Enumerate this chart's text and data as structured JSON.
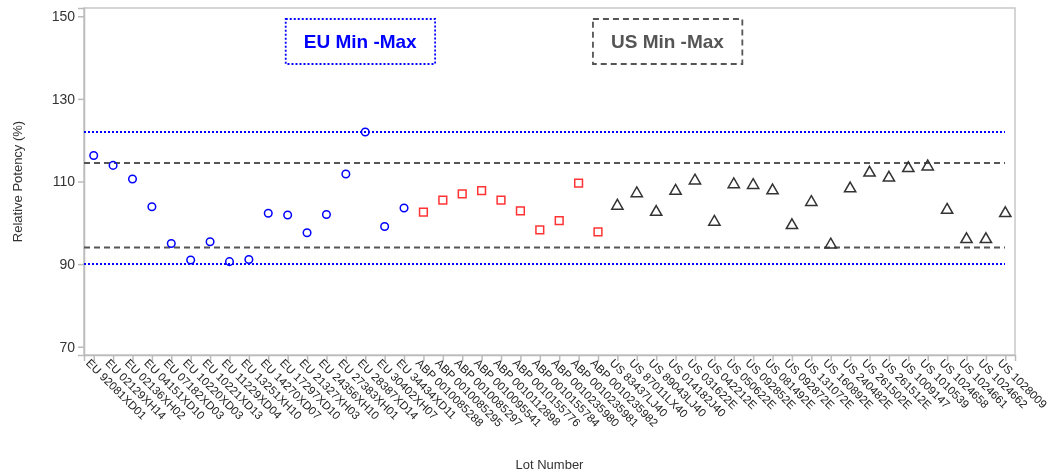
{
  "chart_data": {
    "type": "scatter",
    "xlabel": "Lot Number",
    "ylabel": "Relative Potency (%)",
    "categories": [
      "EU 92081XD01",
      "EU 02129XH14",
      "EU 02136XH02",
      "EU 04151XD10",
      "EU 07182XD03",
      "EU 10220XD03",
      "EU 10221XD13",
      "EU 11229XD04",
      "EU 13251XH10",
      "EU 14270XD07",
      "EU 17297XD10",
      "EU 21327XH03",
      "EU 24356XH10",
      "EU 27383XH01",
      "EU 28387XD14",
      "EU 30402XH07",
      "EU 34434XD11",
      "ABP 0010085288",
      "ABP 0010085295",
      "ABP 0010085297",
      "ABP 0010095541",
      "ABP 0010112898",
      "ABP 0010155776",
      "ABP 0010155784",
      "ABP 0010235980",
      "ABP 0010235981",
      "ABP 0010235982",
      "US 83437LJ40",
      "US 87011LX40",
      "US 89043LJ40",
      "US 014182J40",
      "US 031622E",
      "US 042212E",
      "US 050622E",
      "US 092852E",
      "US 081492E",
      "US 092872E",
      "US 131072E",
      "US 160892E",
      "US 240482E",
      "US 261502E",
      "US 261512E",
      "US 1009147",
      "US 1010539",
      "US 1024658",
      "US 1024661",
      "US 1024662",
      "US 1028009"
    ],
    "series": [
      {
        "color": "#0000ff",
        "marker": "circle",
        "values": [
          116.3,
          113.9,
          110.6,
          103.9,
          95.0,
          91.0,
          95.4,
          90.6,
          91.1,
          102.3,
          101.9,
          97.6,
          102.0,
          111.8,
          122.0,
          99.1,
          103.6,
          null,
          null,
          null,
          null,
          null,
          null,
          null,
          null,
          null,
          null,
          null,
          null,
          null,
          null,
          null,
          null,
          null,
          null,
          null,
          null,
          null,
          null,
          null,
          null,
          null,
          null,
          null,
          null,
          null,
          null,
          null
        ]
      },
      {
        "color": "#ff3333",
        "marker": "square",
        "values": [
          null,
          null,
          null,
          null,
          null,
          null,
          null,
          null,
          null,
          null,
          null,
          null,
          null,
          null,
          null,
          null,
          null,
          102.6,
          105.5,
          107.0,
          107.8,
          105.5,
          102.9,
          98.3,
          100.5,
          109.6,
          97.8,
          null,
          null,
          null,
          null,
          null,
          null,
          null,
          null,
          null,
          null,
          null,
          null,
          null,
          null,
          null,
          null,
          null,
          null,
          null,
          null,
          null
        ]
      },
      {
        "color": "#333333",
        "marker": "triangle",
        "values": [
          null,
          null,
          null,
          null,
          null,
          null,
          null,
          null,
          null,
          null,
          null,
          null,
          null,
          null,
          null,
          null,
          null,
          null,
          null,
          null,
          null,
          null,
          null,
          null,
          null,
          null,
          null,
          104.1,
          107.1,
          102.6,
          107.7,
          110.2,
          100.2,
          109.3,
          109.1,
          107.8,
          99.4,
          105.0,
          94.7,
          108.3,
          112.1,
          110.9,
          113.2,
          113.6,
          103.1,
          96.0,
          96.0,
          102.3
        ]
      }
    ],
    "ylim": [
      68,
      152
    ],
    "yticks": [
      70,
      90,
      110,
      130,
      150
    ],
    "grid": false,
    "ref_lines": [
      {
        "axis": "y",
        "value": 122,
        "label": "EU Min -Max",
        "color": "#0000ff",
        "line_style": "dotted"
      },
      {
        "axis": "y",
        "value": 90,
        "color": "#0000ff",
        "line_style": "dotted"
      },
      {
        "axis": "y",
        "value": 114.5,
        "label": "US Min -Max",
        "color": "#555555",
        "line_style": "dashed"
      },
      {
        "axis": "y",
        "value": 94,
        "color": "#555555",
        "line_style": "dashed"
      }
    ]
  }
}
